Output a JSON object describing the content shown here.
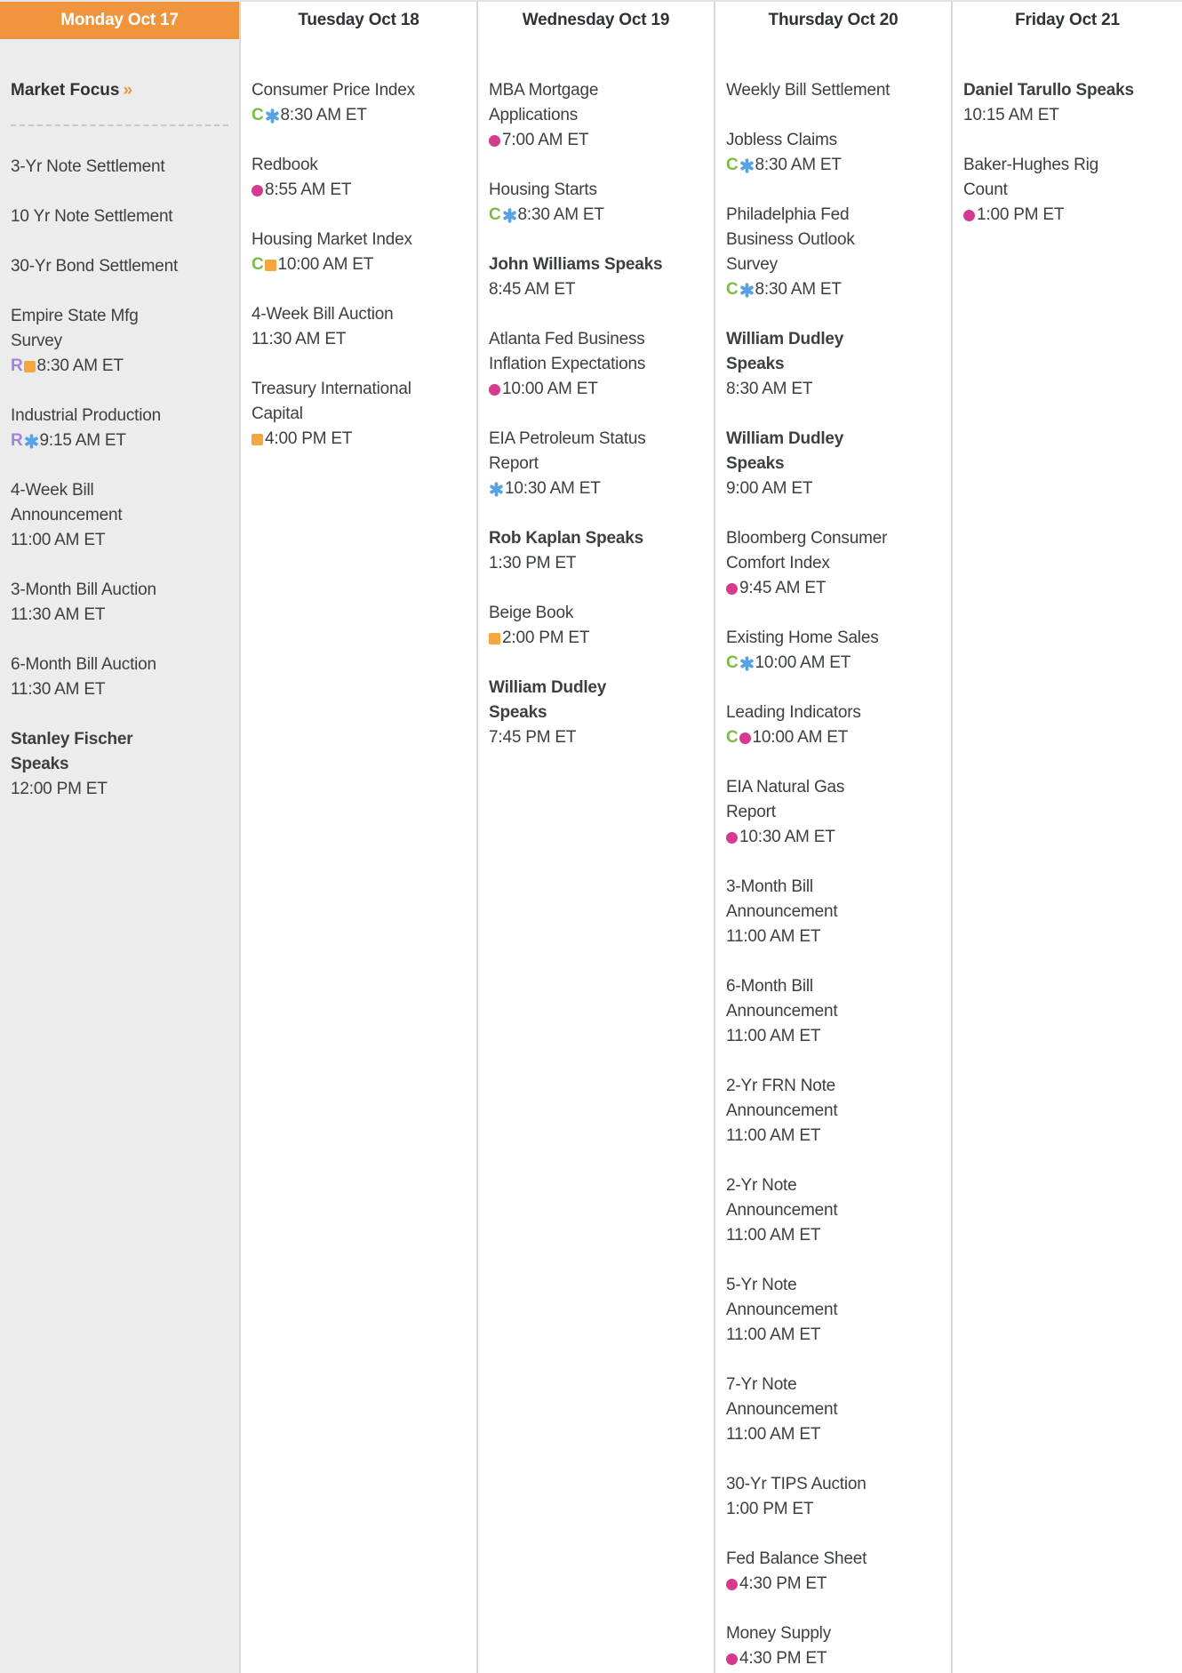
{
  "market_focus": {
    "label": "Market Focus",
    "chevron": "»"
  },
  "icon_glyphs": {
    "c": "C",
    "r": "R"
  },
  "colors": {
    "header_orange": "#F0953E",
    "monday_bg": "#ECECEC",
    "text": "#3B3F42",
    "header_text": "#2F3337",
    "divider": "#D9D9D9",
    "dashed": "#C8C8C8",
    "icon_green": "#7CBB45",
    "icon_blue": "#57A2E4",
    "icon_pink": "#D63A8F",
    "icon_orange": "#F3A73E",
    "icon_purple": "#A183D9"
  },
  "days": [
    {
      "header": "Monday Oct 17",
      "selected": true,
      "events": [
        {
          "title": "3-Yr Note Settlement"
        },
        {
          "title": "10 Yr Note Settlement"
        },
        {
          "title": "30-Yr Bond Settlement"
        },
        {
          "title": "Empire State Mfg\nSurvey",
          "icons": [
            "r",
            "square"
          ],
          "time": "8:30 AM ET"
        },
        {
          "title": "Industrial Production",
          "icons": [
            "r",
            "star"
          ],
          "time": "9:15 AM ET"
        },
        {
          "title": "4-Week Bill\nAnnouncement",
          "time": "11:00 AM ET"
        },
        {
          "title": "3-Month Bill Auction",
          "time": "11:30 AM ET"
        },
        {
          "title": "6-Month Bill Auction",
          "time": "11:30 AM ET"
        },
        {
          "title": "Stanley Fischer\nSpeaks",
          "bold": true,
          "time": "12:00 PM ET"
        }
      ]
    },
    {
      "header": "Tuesday Oct 18",
      "selected": false,
      "events": [
        {
          "title": "Consumer Price Index",
          "icons": [
            "c",
            "star"
          ],
          "time": "8:30 AM ET"
        },
        {
          "title": "Redbook",
          "icons": [
            "dot"
          ],
          "time": "8:55 AM ET"
        },
        {
          "title": "Housing Market Index",
          "icons": [
            "c",
            "square"
          ],
          "time": "10:00 AM ET"
        },
        {
          "title": "4-Week Bill Auction",
          "time": "11:30 AM ET"
        },
        {
          "title": "Treasury International\nCapital",
          "icons": [
            "square"
          ],
          "time": "4:00 PM ET"
        }
      ]
    },
    {
      "header": "Wednesday Oct 19",
      "selected": false,
      "events": [
        {
          "title": "MBA Mortgage\nApplications",
          "icons": [
            "dot"
          ],
          "time": "7:00 AM ET"
        },
        {
          "title": "Housing Starts",
          "icons": [
            "c",
            "star"
          ],
          "time": "8:30 AM ET"
        },
        {
          "title": "John Williams Speaks",
          "bold": true,
          "time": "8:45 AM ET"
        },
        {
          "title": "Atlanta Fed Business\nInflation Expectations",
          "icons": [
            "dot"
          ],
          "time": "10:00 AM ET"
        },
        {
          "title": "EIA Petroleum Status\nReport",
          "icons": [
            "star"
          ],
          "time": "10:30 AM ET"
        },
        {
          "title": "Rob Kaplan Speaks",
          "bold": true,
          "time": "1:30 PM ET"
        },
        {
          "title": "Beige Book",
          "icons": [
            "square"
          ],
          "time": "2:00 PM ET"
        },
        {
          "title": "William Dudley\nSpeaks",
          "bold": true,
          "time": "7:45 PM ET"
        }
      ]
    },
    {
      "header": "Thursday Oct 20",
      "selected": false,
      "events": [
        {
          "title": "Weekly Bill Settlement"
        },
        {
          "title": "Jobless Claims",
          "icons": [
            "c",
            "star"
          ],
          "time": "8:30 AM ET"
        },
        {
          "title": "Philadelphia Fed\nBusiness Outlook\nSurvey",
          "icons": [
            "c",
            "star"
          ],
          "time": "8:30 AM ET"
        },
        {
          "title": "William Dudley\nSpeaks",
          "bold": true,
          "time": "8:30 AM ET"
        },
        {
          "title": "William Dudley\nSpeaks",
          "bold": true,
          "time": "9:00 AM ET"
        },
        {
          "title": "Bloomberg Consumer\nComfort Index",
          "icons": [
            "dot"
          ],
          "time": "9:45 AM ET"
        },
        {
          "title": "Existing Home Sales",
          "icons": [
            "c",
            "star"
          ],
          "time": "10:00 AM ET"
        },
        {
          "title": "Leading Indicators",
          "icons": [
            "c",
            "dot"
          ],
          "time": "10:00 AM ET"
        },
        {
          "title": "EIA Natural Gas\nReport",
          "icons": [
            "dot"
          ],
          "time": "10:30 AM ET"
        },
        {
          "title": "3-Month Bill\nAnnouncement",
          "time": "11:00 AM ET"
        },
        {
          "title": "6-Month Bill\nAnnouncement",
          "time": "11:00 AM ET"
        },
        {
          "title": "2-Yr FRN Note\nAnnouncement",
          "time": "11:00 AM ET"
        },
        {
          "title": "2-Yr Note\nAnnouncement",
          "time": "11:00 AM ET"
        },
        {
          "title": "5-Yr Note\nAnnouncement",
          "time": "11:00 AM ET"
        },
        {
          "title": "7-Yr Note\nAnnouncement",
          "time": "11:00 AM ET"
        },
        {
          "title": "30-Yr TIPS Auction",
          "time": "1:00 PM ET"
        },
        {
          "title": "Fed Balance Sheet",
          "icons": [
            "dot"
          ],
          "time": "4:30 PM ET"
        },
        {
          "title": "Money Supply",
          "icons": [
            "dot"
          ],
          "time": "4:30 PM ET"
        }
      ]
    },
    {
      "header": "Friday Oct 21",
      "selected": false,
      "events": [
        {
          "title": "Daniel Tarullo Speaks",
          "bold": true,
          "time": "10:15 AM ET"
        },
        {
          "title": "Baker-Hughes Rig\nCount",
          "icons": [
            "dot"
          ],
          "time": "1:00 PM ET"
        }
      ]
    }
  ]
}
